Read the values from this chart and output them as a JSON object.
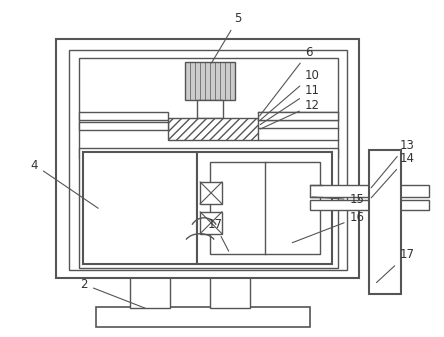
{
  "bg_color": "#ffffff",
  "line_color": "#555555",
  "figsize": [
    4.44,
    3.37
  ],
  "dpi": 100,
  "fs": 8.5
}
